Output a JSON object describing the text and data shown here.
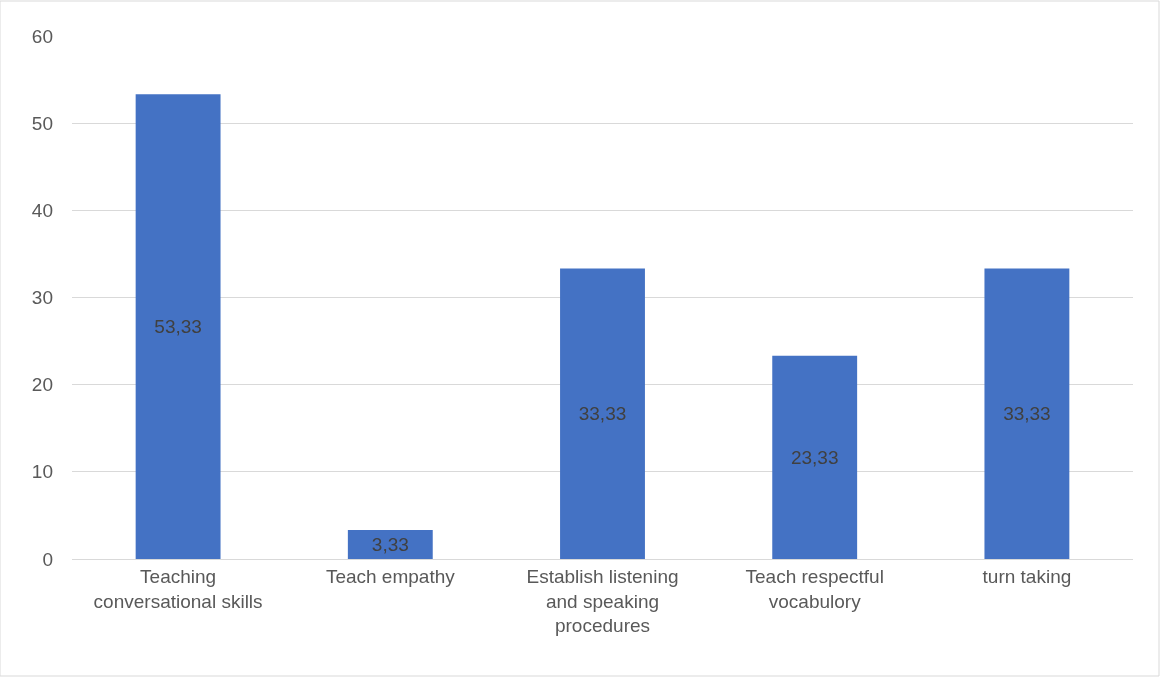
{
  "chart_data": {
    "type": "bar",
    "categories": [
      "Teaching conversational skills",
      "Teach empathy",
      "Establish listening and speaking procedures",
      "Teach respectful vocabulory",
      "turn taking"
    ],
    "values": [
      53.33,
      3.33,
      33.33,
      23.33,
      33.33
    ],
    "value_labels": [
      "53,33",
      "3,33",
      "33,33",
      "23,33",
      "33,33"
    ],
    "color": "#4472c4",
    "ylim": [
      0,
      60
    ],
    "yticks": [
      0,
      10,
      20,
      30,
      40,
      50,
      60
    ],
    "grid": "y",
    "legend": false
  }
}
